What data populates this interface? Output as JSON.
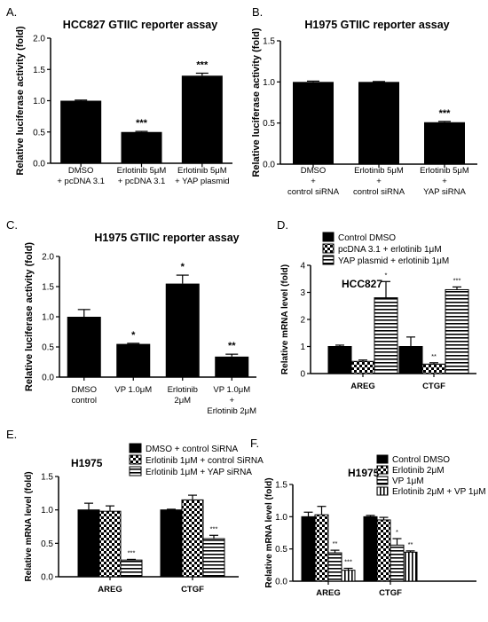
{
  "chart_data": [
    {
      "panel": "A.",
      "type": "bar",
      "title": "HCC827 GTIIC reporter assay",
      "ylabel": "Relative luciferase activity (fold)",
      "ylim": [
        0,
        2.0
      ],
      "yticks": [
        "0.0",
        "0.5",
        "1.0",
        "1.5",
        "2.0"
      ],
      "categories": [
        [
          "DMSO",
          "+ pcDNA 3.1"
        ],
        [
          "Erlotinib 5μM",
          "+ pcDNA 3.1"
        ],
        [
          "Erlotinib 5μM",
          "+ YAP plasmid"
        ]
      ],
      "series": [
        {
          "values": [
            1.0,
            0.5,
            1.4
          ],
          "errors": [
            0.01,
            0.01,
            0.04
          ]
        }
      ],
      "annotations": [
        "",
        "***",
        "***"
      ]
    },
    {
      "panel": "B.",
      "type": "bar",
      "title": "H1975 GTIIC reporter assay",
      "ylabel": "Relative luciferase activity (fold)",
      "ylim": [
        0,
        1.5
      ],
      "yticks": [
        "0.0",
        "0.5",
        "1.0",
        "1.5"
      ],
      "categories": [
        [
          "DMSO",
          "+",
          "control siRNA"
        ],
        [
          "Erlotinib 5μM",
          "+",
          "control siRNA"
        ],
        [
          "Erlotinib 5μM",
          "+",
          "YAP siRNA"
        ]
      ],
      "series": [
        {
          "values": [
            1.0,
            1.0,
            0.51
          ],
          "errors": [
            0.01,
            0.005,
            0.01
          ]
        }
      ],
      "annotations": [
        "",
        "",
        "***"
      ]
    },
    {
      "panel": "C.",
      "type": "bar",
      "title": "H1975 GTIIC reporter assay",
      "ylabel": "Relative luciferase activity (fold)",
      "ylim": [
        0,
        2.0
      ],
      "yticks": [
        "0.0",
        "0.5",
        "1.0",
        "1.5",
        "2.0"
      ],
      "categories": [
        [
          "DMSO",
          "control"
        ],
        [
          "VP 1.0μM"
        ],
        [
          "Erlotinib",
          "2μM"
        ],
        [
          "VP 1.0μM",
          "+",
          "Erlotinib 2μM"
        ]
      ],
      "series": [
        {
          "values": [
            1.0,
            0.55,
            1.55,
            0.34
          ],
          "errors": [
            0.12,
            0.01,
            0.14,
            0.04
          ]
        }
      ],
      "annotations": [
        "",
        "*",
        "*",
        "**"
      ]
    },
    {
      "panel": "D.",
      "type": "bar",
      "title": "HCC827",
      "ylabel": "Relative mRNA level (fold)",
      "ylim": [
        0,
        4
      ],
      "yticks": [
        "0",
        "1",
        "2",
        "3",
        "4"
      ],
      "categories": [
        "AREG",
        "CTGF"
      ],
      "series": [
        {
          "name": "Control DMSO",
          "values": [
            1.0,
            1.0
          ],
          "errors": [
            0.05,
            0.35
          ],
          "stars": [
            "",
            ""
          ]
        },
        {
          "name": "pcDNA 3.1 + erlotinib 1μM",
          "values": [
            0.45,
            0.35
          ],
          "errors": [
            0.05,
            0.05
          ],
          "stars": [
            "",
            "**"
          ]
        },
        {
          "name": "YAP plasmid + erlotinib 1μM",
          "values": [
            2.8,
            3.1
          ],
          "errors": [
            0.6,
            0.1
          ],
          "stars": [
            "*",
            "***"
          ]
        }
      ]
    },
    {
      "panel": "E.",
      "type": "bar",
      "title": "H1975",
      "ylabel": "Relative mRNA level (fold)",
      "ylim": [
        0,
        1.5
      ],
      "yticks": [
        "0.0",
        "0.5",
        "1.0",
        "1.5"
      ],
      "categories": [
        "AREG",
        "CTGF"
      ],
      "series": [
        {
          "name": "DMSO + control SiRNA",
          "values": [
            1.0,
            1.0
          ],
          "errors": [
            0.1,
            0.01
          ],
          "stars": [
            "",
            ""
          ]
        },
        {
          "name": "Erlotinib 1μM + control SiRNA",
          "values": [
            0.98,
            1.15
          ],
          "errors": [
            0.08,
            0.07
          ],
          "stars": [
            "",
            ""
          ]
        },
        {
          "name": "Erlotinib 1μM + YAP siRNA",
          "values": [
            0.25,
            0.57
          ],
          "errors": [
            0.01,
            0.05
          ],
          "stars": [
            "***",
            "***"
          ]
        }
      ]
    },
    {
      "panel": "F.",
      "type": "bar",
      "title": "H1975",
      "ylabel": "Relative mRNA level (fold)",
      "ylim": [
        0,
        1.5
      ],
      "yticks": [
        "0.0",
        "0.5",
        "1.0",
        "1.5"
      ],
      "categories": [
        "AREG",
        "CTGF"
      ],
      "series": [
        {
          "name": "Control DMSO",
          "values": [
            1.0,
            1.0
          ],
          "errors": [
            0.07,
            0.02
          ],
          "stars": [
            "",
            ""
          ]
        },
        {
          "name": "Erlotinib 2μM",
          "values": [
            1.03,
            0.95
          ],
          "errors": [
            0.13,
            0.04
          ],
          "stars": [
            "",
            ""
          ]
        },
        {
          "name": "VP 1μM",
          "values": [
            0.44,
            0.56
          ],
          "errors": [
            0.04,
            0.1
          ],
          "stars": [
            "**",
            "*"
          ]
        },
        {
          "name": "Erlotinib 2μM + VP 1μM",
          "values": [
            0.17,
            0.45
          ],
          "errors": [
            0.03,
            0.02
          ],
          "stars": [
            "***",
            "**"
          ]
        }
      ]
    }
  ]
}
